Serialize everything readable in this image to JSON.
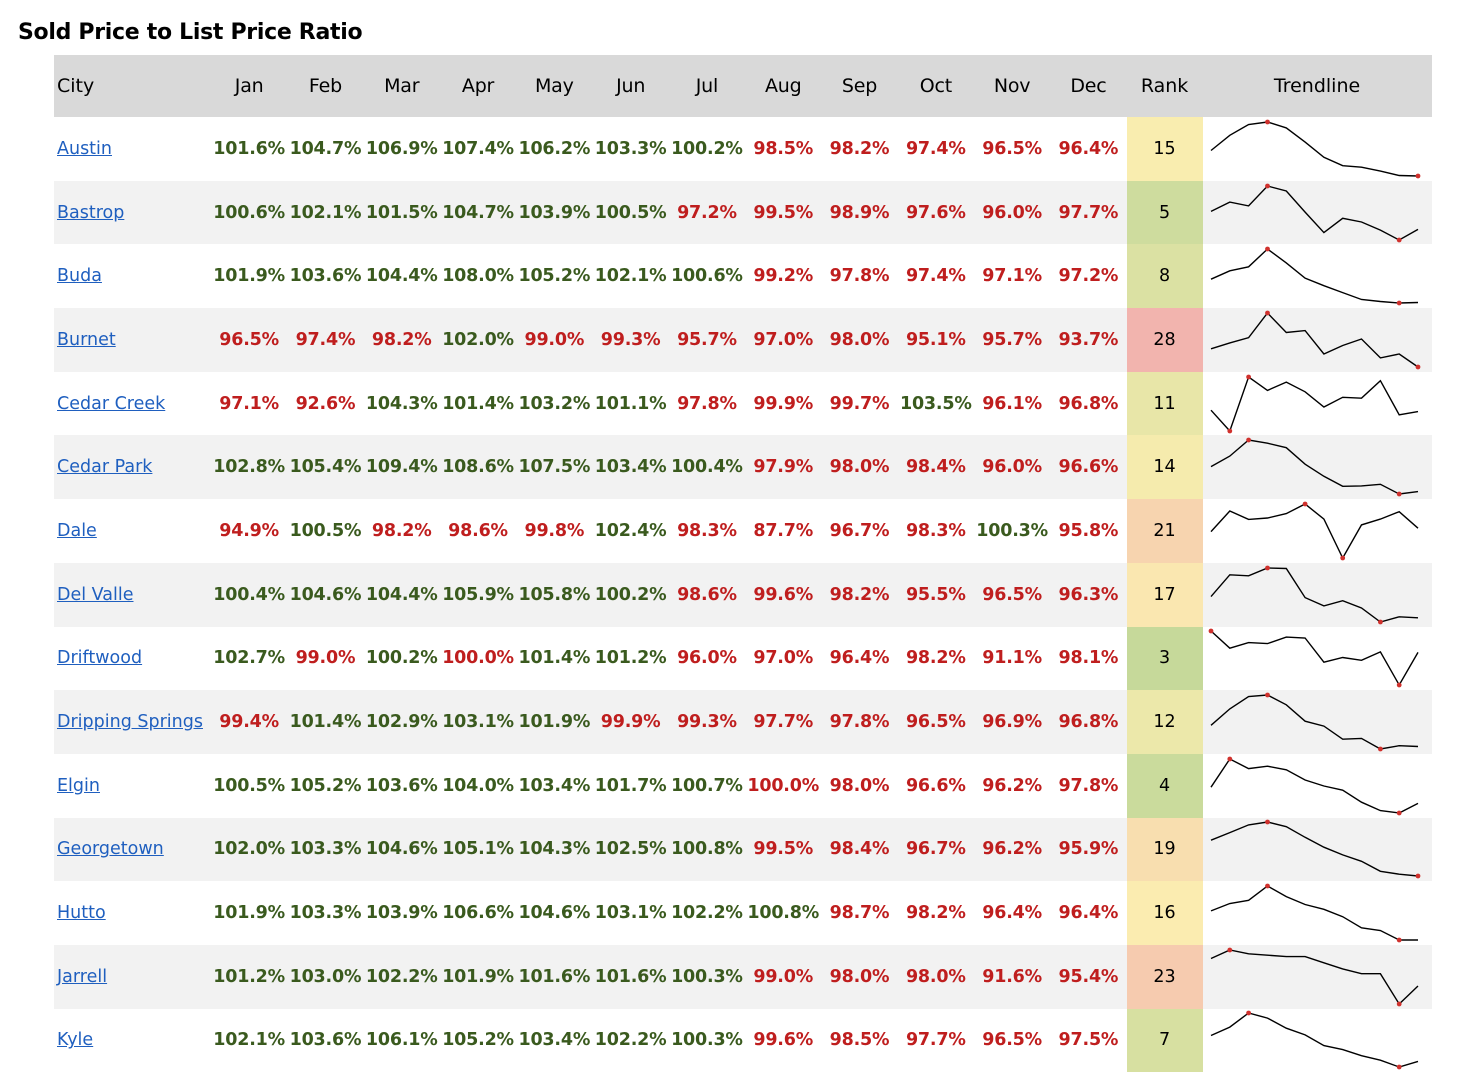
{
  "title": "Sold Price to List Price Ratio",
  "headers": {
    "city": "City",
    "months": [
      "Jan",
      "Feb",
      "Mar",
      "Apr",
      "May",
      "Jun",
      "Jul",
      "Aug",
      "Sep",
      "Oct",
      "Nov",
      "Dec"
    ],
    "rank": "Rank",
    "trend": "Trendline"
  },
  "colors": {
    "above": "#3a5a1e",
    "below": "#bf1e1e",
    "link": "#1f5fbf",
    "header_bg": "#d9d9d9",
    "alt_row_bg": "#f2f2f2",
    "sparkline": "#000000",
    "marker": "#d0312d"
  },
  "chart_data": {
    "type": "table",
    "title": "Sold Price to List Price Ratio",
    "columns": [
      "City",
      "Jan",
      "Feb",
      "Mar",
      "Apr",
      "May",
      "Jun",
      "Jul",
      "Aug",
      "Sep",
      "Oct",
      "Nov",
      "Dec",
      "Rank",
      "Trendline"
    ],
    "rank_color_scale": {
      "low": "#c6d99a",
      "mid": "#fbeeb0",
      "high": "#f2b4ae"
    },
    "rows": [
      {
        "city": "Austin",
        "values": [
          101.6,
          104.7,
          106.9,
          107.4,
          106.2,
          103.3,
          100.2,
          98.5,
          98.2,
          97.4,
          96.5,
          96.4
        ],
        "labels": [
          "101.6%",
          "104.7%",
          "106.9%",
          "107.4%",
          "106.2%",
          "103.3%",
          "100.2%",
          "98.5%",
          "98.2%",
          "97.4%",
          "96.5%",
          "96.4%"
        ],
        "rank": 15
      },
      {
        "city": "Bastrop",
        "values": [
          100.6,
          102.1,
          101.5,
          104.7,
          103.9,
          100.5,
          97.2,
          99.5,
          98.9,
          97.6,
          96.0,
          97.7
        ],
        "labels": [
          "100.6%",
          "102.1%",
          "101.5%",
          "104.7%",
          "103.9%",
          "100.5%",
          "97.2%",
          "99.5%",
          "98.9%",
          "97.6%",
          "96.0%",
          "97.7%"
        ],
        "rank": 5
      },
      {
        "city": "Buda",
        "values": [
          101.9,
          103.6,
          104.4,
          108.0,
          105.2,
          102.1,
          100.6,
          99.2,
          97.8,
          97.4,
          97.1,
          97.2
        ],
        "labels": [
          "101.9%",
          "103.6%",
          "104.4%",
          "108.0%",
          "105.2%",
          "102.1%",
          "100.6%",
          "99.2%",
          "97.8%",
          "97.4%",
          "97.1%",
          "97.2%"
        ],
        "rank": 8
      },
      {
        "city": "Burnet",
        "values": [
          96.5,
          97.4,
          98.2,
          102.0,
          99.0,
          99.3,
          95.7,
          97.0,
          98.0,
          95.1,
          95.7,
          93.7
        ],
        "labels": [
          "96.5%",
          "97.4%",
          "98.2%",
          "102.0%",
          "99.0%",
          "99.3%",
          "95.7%",
          "97.0%",
          "98.0%",
          "95.1%",
          "95.7%",
          "93.7%"
        ],
        "rank": 28
      },
      {
        "city": "Cedar Creek",
        "values": [
          97.1,
          92.6,
          104.3,
          101.4,
          103.2,
          101.1,
          97.8,
          99.9,
          99.7,
          103.5,
          96.1,
          96.8
        ],
        "labels": [
          "97.1%",
          "92.6%",
          "104.3%",
          "101.4%",
          "103.2%",
          "101.1%",
          "97.8%",
          "99.9%",
          "99.7%",
          "103.5%",
          "96.1%",
          "96.8%"
        ],
        "rank": 11
      },
      {
        "city": "Cedar Park",
        "values": [
          102.8,
          105.4,
          109.4,
          108.6,
          107.5,
          103.4,
          100.4,
          97.9,
          98.0,
          98.4,
          96.0,
          96.6
        ],
        "labels": [
          "102.8%",
          "105.4%",
          "109.4%",
          "108.6%",
          "107.5%",
          "103.4%",
          "100.4%",
          "97.9%",
          "98.0%",
          "98.4%",
          "96.0%",
          "96.6%"
        ],
        "rank": 14
      },
      {
        "city": "Dale",
        "values": [
          94.9,
          100.5,
          98.2,
          98.6,
          99.8,
          102.4,
          98.3,
          87.7,
          96.7,
          98.3,
          100.3,
          95.8
        ],
        "labels": [
          "94.9%",
          "100.5%",
          "98.2%",
          "98.6%",
          "99.8%",
          "102.4%",
          "98.3%",
          "87.7%",
          "96.7%",
          "98.3%",
          "100.3%",
          "95.8%"
        ],
        "rank": 21
      },
      {
        "city": "Del Valle",
        "values": [
          100.4,
          104.6,
          104.4,
          105.9,
          105.8,
          100.2,
          98.6,
          99.6,
          98.2,
          95.5,
          96.5,
          96.3
        ],
        "labels": [
          "100.4%",
          "104.6%",
          "104.4%",
          "105.9%",
          "105.8%",
          "100.2%",
          "98.6%",
          "99.6%",
          "98.2%",
          "95.5%",
          "96.5%",
          "96.3%"
        ],
        "rank": 17
      },
      {
        "city": "Driftwood",
        "values": [
          102.7,
          99.0,
          100.2,
          100.0,
          101.4,
          101.2,
          96.0,
          97.0,
          96.4,
          98.2,
          91.1,
          98.1
        ],
        "labels": [
          "102.7%",
          "99.0%",
          "100.2%",
          "100.0%",
          "101.4%",
          "101.2%",
          "96.0%",
          "97.0%",
          "96.4%",
          "98.2%",
          "91.1%",
          "98.1%"
        ],
        "rank": 3
      },
      {
        "city": "Dripping Springs",
        "values": [
          99.4,
          101.4,
          102.9,
          103.1,
          101.9,
          99.9,
          99.3,
          97.7,
          97.8,
          96.5,
          96.9,
          96.8
        ],
        "labels": [
          "99.4%",
          "101.4%",
          "102.9%",
          "103.1%",
          "101.9%",
          "99.9%",
          "99.3%",
          "97.7%",
          "97.8%",
          "96.5%",
          "96.9%",
          "96.8%"
        ],
        "rank": 12
      },
      {
        "city": "Elgin",
        "values": [
          100.5,
          105.2,
          103.6,
          104.0,
          103.4,
          101.7,
          100.7,
          100.0,
          98.0,
          96.6,
          96.2,
          97.8
        ],
        "labels": [
          "100.5%",
          "105.2%",
          "103.6%",
          "104.0%",
          "103.4%",
          "101.7%",
          "100.7%",
          "100.0%",
          "98.0%",
          "96.6%",
          "96.2%",
          "97.8%"
        ],
        "rank": 4
      },
      {
        "city": "Georgetown",
        "values": [
          102.0,
          103.3,
          104.6,
          105.1,
          104.3,
          102.5,
          100.8,
          99.5,
          98.4,
          96.7,
          96.2,
          95.9
        ],
        "labels": [
          "102.0%",
          "103.3%",
          "104.6%",
          "105.1%",
          "104.3%",
          "102.5%",
          "100.8%",
          "99.5%",
          "98.4%",
          "96.7%",
          "96.2%",
          "95.9%"
        ],
        "rank": 19
      },
      {
        "city": "Hutto",
        "values": [
          101.9,
          103.3,
          103.9,
          106.6,
          104.6,
          103.1,
          102.2,
          100.8,
          98.7,
          98.2,
          96.4,
          96.4
        ],
        "labels": [
          "101.9%",
          "103.3%",
          "103.9%",
          "106.6%",
          "104.6%",
          "103.1%",
          "102.2%",
          "100.8%",
          "98.7%",
          "98.2%",
          "96.4%",
          "96.4%"
        ],
        "rank": 16
      },
      {
        "city": "Jarrell",
        "values": [
          101.2,
          103.0,
          102.2,
          101.9,
          101.6,
          101.6,
          100.3,
          99.0,
          98.0,
          98.0,
          91.6,
          95.4
        ],
        "labels": [
          "101.2%",
          "103.0%",
          "102.2%",
          "101.9%",
          "101.6%",
          "101.6%",
          "100.3%",
          "99.0%",
          "98.0%",
          "98.0%",
          "91.6%",
          "95.4%"
        ],
        "rank": 23
      },
      {
        "city": "Kyle",
        "values": [
          102.1,
          103.6,
          106.1,
          105.2,
          103.4,
          102.2,
          100.3,
          99.6,
          98.5,
          97.7,
          96.5,
          97.5
        ],
        "labels": [
          "102.1%",
          "103.6%",
          "106.1%",
          "105.2%",
          "103.4%",
          "102.2%",
          "100.3%",
          "99.6%",
          "98.5%",
          "97.7%",
          "96.5%",
          "97.5%"
        ],
        "rank": 7
      }
    ]
  }
}
